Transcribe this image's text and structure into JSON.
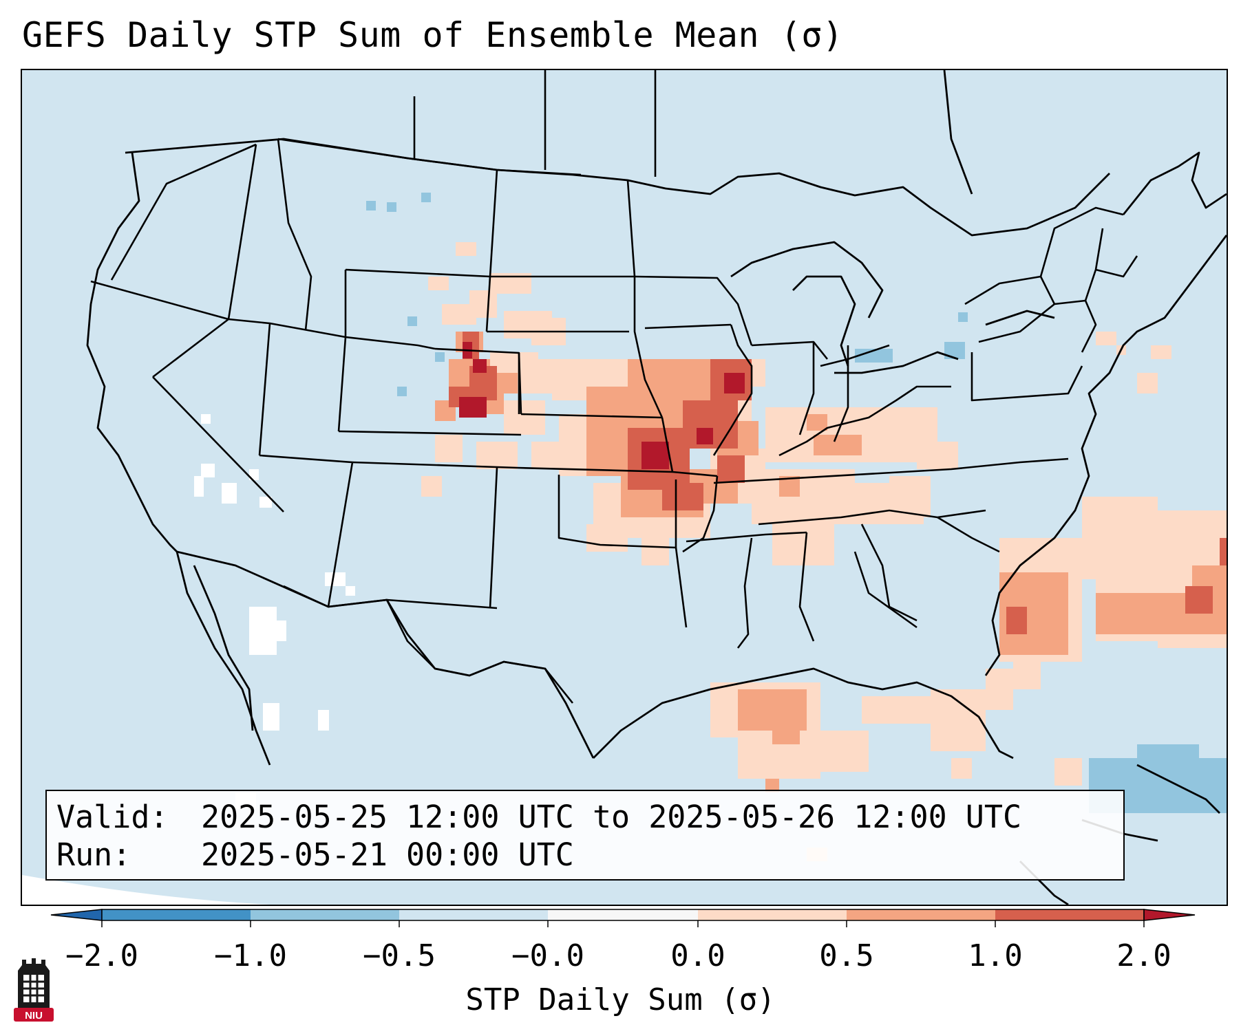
{
  "title": "GEFS Daily STP Sum of Ensemble Mean (σ)",
  "info": {
    "valid_label": "Valid:",
    "valid_value": "2025-05-25 12:00 UTC to 2025-05-26 12:00 UTC",
    "run_label": "Run:",
    "run_value": "2025-05-21 00:00 UTC"
  },
  "colorbar": {
    "label": "STP Daily Sum (σ)",
    "ticks": [
      "−2.0",
      "−1.0",
      "−0.5",
      "−0.0",
      "0.0",
      "0.5",
      "1.0",
      "2.0"
    ],
    "colors": [
      "#4292c6",
      "#92c5de",
      "#d1e5f0",
      "#f7f7f7",
      "#fddbc7",
      "#f4a582",
      "#d6604d"
    ],
    "extend_under_color": "#2166ac",
    "extend_over_color": "#b2182b"
  },
  "logo": {
    "text": "NIU",
    "color": "#c8102e"
  },
  "map": {
    "background_color": "#d1e5f0",
    "projection": "Lambert Conformal",
    "region": "Contiguous United States",
    "features": [
      "coastlines",
      "country-borders",
      "state-borders"
    ],
    "field": "STP daily sum ensemble mean anomaly (σ)",
    "highlights": [
      "Strongest positive anomalies (1.0–2.0σ) over eastern Colorado, Kansas, Oklahoma and Missouri",
      "Moderate anomalies (0.5–1.0σ) over Arkansas, Tennessee Valley and the Gulf of Mexico",
      "Positive anomaly band off the Southeast US coast into the western Atlantic"
    ]
  }
}
